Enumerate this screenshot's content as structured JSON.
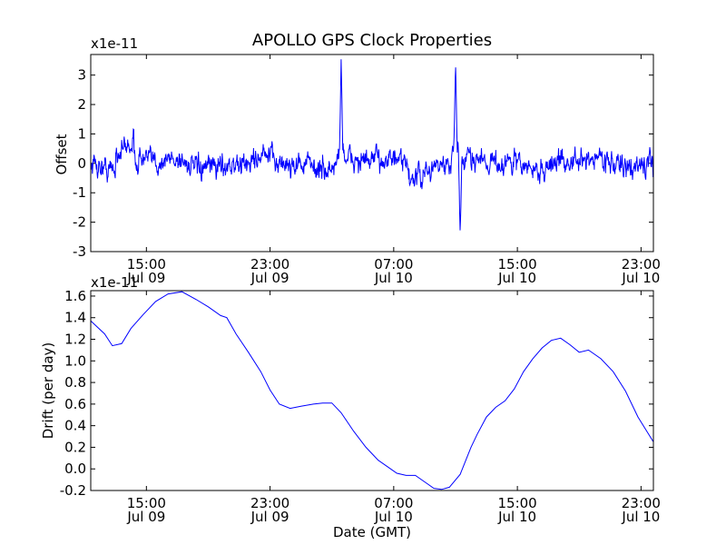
{
  "title": "APOLLO GPS Clock Properties",
  "chart_data": [
    {
      "type": "line",
      "name": "offset",
      "ylabel": "Offset",
      "xlabel": "",
      "scale_label": "x1e-11",
      "ylim": [
        -3,
        3.7
      ],
      "yticks": [
        "-3",
        "-2",
        "-1",
        "0",
        "1",
        "2",
        "3"
      ],
      "ytick_values": [
        -3,
        -2,
        -1,
        0,
        1,
        2,
        3
      ],
      "xlim_hours": [
        11.4,
        47.8
      ],
      "xticks": [
        {
          "h": 15,
          "time": "15:00",
          "date": "Jul 09"
        },
        {
          "h": 23,
          "time": "23:00",
          "date": "Jul 09"
        },
        {
          "h": 31,
          "time": "07:00",
          "date": "Jul 10"
        },
        {
          "h": 39,
          "time": "15:00",
          "date": "Jul 10"
        },
        {
          "h": 47,
          "time": "23:00",
          "date": "Jul 10"
        }
      ],
      "color": "#0000ff",
      "series_note": "noisy offset, mostly within -1 to 1, with spikes near 3.6 around 27.6h and 35.0h and a dip to -2.4 near 35.2h",
      "spikes": [
        {
          "h": 27.6,
          "y": 3.6
        },
        {
          "h": 35.0,
          "y": 3.5
        },
        {
          "h": 35.3,
          "y": -2.4
        }
      ]
    },
    {
      "type": "line",
      "name": "drift",
      "ylabel": "Drift (per day)",
      "xlabel": "Date (GMT)",
      "scale_label": "x1e-11",
      "ylim": [
        -0.2,
        1.65
      ],
      "yticks": [
        "-0.2",
        "0.0",
        "0.2",
        "0.4",
        "0.6",
        "0.8",
        "1.0",
        "1.2",
        "1.4",
        "1.6"
      ],
      "ytick_values": [
        -0.2,
        0.0,
        0.2,
        0.4,
        0.6,
        0.8,
        1.0,
        1.2,
        1.4,
        1.6
      ],
      "xlim_hours": [
        11.4,
        47.8
      ],
      "xticks": [
        {
          "h": 15,
          "time": "15:00",
          "date": "Jul 09"
        },
        {
          "h": 23,
          "time": "23:00",
          "date": "Jul 09"
        },
        {
          "h": 31,
          "time": "07:00",
          "date": "Jul 10"
        },
        {
          "h": 39,
          "time": "15:00",
          "date": "Jul 10"
        },
        {
          "h": 47,
          "time": "23:00",
          "date": "Jul 10"
        }
      ],
      "color": "#0000ff",
      "x": [
        11.4,
        12.3,
        12.8,
        13.4,
        14.0,
        14.8,
        15.6,
        16.4,
        17.3,
        18.2,
        19.0,
        19.8,
        20.2,
        20.8,
        21.6,
        22.4,
        23.0,
        23.6,
        24.3,
        25.0,
        25.8,
        26.4,
        27.0,
        27.6,
        28.4,
        29.2,
        30.0,
        30.6,
        31.2,
        31.8,
        32.4,
        32.8,
        33.2,
        33.6,
        34.1,
        34.6,
        35.3,
        36.0,
        36.4,
        37.0,
        37.6,
        38.2,
        38.8,
        39.4,
        40.0,
        40.6,
        41.2,
        41.8,
        42.4,
        43.0,
        43.6,
        44.4,
        45.2,
        46.0,
        46.8,
        47.8
      ],
      "values": [
        1.37,
        1.25,
        1.14,
        1.16,
        1.3,
        1.43,
        1.55,
        1.62,
        1.64,
        1.57,
        1.5,
        1.42,
        1.4,
        1.25,
        1.08,
        0.9,
        0.73,
        0.6,
        0.56,
        0.58,
        0.6,
        0.61,
        0.61,
        0.52,
        0.35,
        0.2,
        0.08,
        0.02,
        -0.04,
        -0.06,
        -0.06,
        -0.1,
        -0.14,
        -0.18,
        -0.19,
        -0.17,
        -0.05,
        0.2,
        0.32,
        0.48,
        0.57,
        0.63,
        0.74,
        0.9,
        1.02,
        1.12,
        1.19,
        1.21,
        1.15,
        1.08,
        1.1,
        1.02,
        0.9,
        0.72,
        0.48,
        0.25
      ]
    }
  ]
}
